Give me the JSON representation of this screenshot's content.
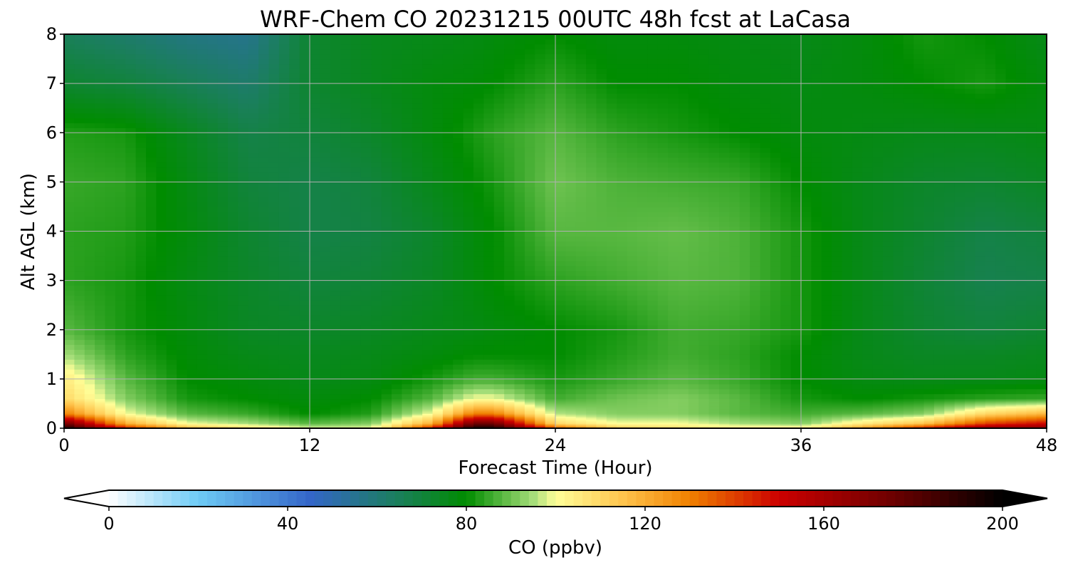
{
  "chart_data": {
    "type": "heatmap",
    "title": "WRF-Chem CO  20231215 00UTC 48h fcst at LaCasa",
    "xlabel": "Forecast Time (Hour)",
    "ylabel": "Alt AGL (km)",
    "xlim": [
      0,
      48
    ],
    "ylim": [
      0,
      8
    ],
    "x_ticks": [
      0,
      12,
      24,
      36,
      48
    ],
    "y_ticks": [
      0,
      1,
      2,
      3,
      4,
      5,
      6,
      7,
      8
    ],
    "grid": true,
    "x": [
      0,
      3,
      6,
      9,
      12,
      15,
      18,
      20,
      21,
      24,
      27,
      30,
      33,
      36,
      39,
      42,
      45,
      48
    ],
    "y": [
      0,
      0.1,
      0.3,
      0.6,
      1,
      1.5,
      2,
      3,
      4,
      5,
      6,
      7,
      8
    ],
    "z": [
      [
        198,
        150,
        120,
        110,
        100,
        100,
        150,
        198,
        198,
        140,
        115,
        110,
        105,
        105,
        125,
        150,
        170,
        170
      ],
      [
        175,
        120,
        100,
        95,
        88,
        92,
        120,
        175,
        175,
        110,
        100,
        100,
        95,
        92,
        105,
        115,
        140,
        150
      ],
      [
        130,
        100,
        88,
        85,
        80,
        83,
        100,
        130,
        130,
        96,
        92,
        92,
        88,
        86,
        88,
        92,
        110,
        118
      ],
      [
        110,
        92,
        82,
        80,
        78,
        80,
        88,
        100,
        100,
        86,
        90,
        92,
        88,
        82,
        80,
        82,
        84,
        85
      ],
      [
        105,
        88,
        80,
        78,
        76,
        77,
        82,
        86,
        86,
        82,
        85,
        88,
        85,
        80,
        77,
        76,
        76,
        77
      ],
      [
        95,
        84,
        79,
        76,
        75,
        76,
        78,
        80,
        80,
        80,
        83,
        86,
        84,
        80,
        76,
        74,
        74,
        75
      ],
      [
        88,
        82,
        78,
        74,
        73,
        74,
        76,
        77,
        78,
        80,
        82,
        86,
        85,
        82,
        76,
        72,
        70,
        72
      ],
      [
        84,
        82,
        77,
        73,
        70,
        71,
        74,
        78,
        80,
        84,
        86,
        88,
        87,
        82,
        76,
        71,
        67,
        68
      ],
      [
        84,
        83,
        78,
        72,
        68,
        69,
        73,
        78,
        80,
        88,
        88,
        89,
        87,
        82,
        76,
        72,
        68,
        70
      ],
      [
        85,
        84,
        77,
        70,
        68,
        70,
        76,
        80,
        82,
        90,
        87,
        86,
        85,
        80,
        76,
        73,
        72,
        74
      ],
      [
        83,
        82,
        75,
        68,
        70,
        73,
        78,
        82,
        84,
        88,
        84,
        82,
        80,
        78,
        77,
        76,
        76,
        77
      ],
      [
        72,
        70,
        66,
        62,
        72,
        75,
        78,
        79,
        80,
        84,
        80,
        80,
        78,
        77,
        78,
        80,
        82,
        78
      ],
      [
        65,
        62,
        58,
        56,
        72,
        75,
        76,
        77,
        78,
        80,
        78,
        78,
        77,
        76,
        78,
        82,
        80,
        76
      ]
    ],
    "colorbar": {
      "label": "CO  (ppbv)",
      "ticks": [
        0,
        40,
        80,
        120,
        160,
        200
      ],
      "range": [
        0,
        200
      ],
      "extend": "both",
      "stops": [
        {
          "v": 0,
          "c": "#ffffff"
        },
        {
          "v": 20,
          "c": "#6ecbf5"
        },
        {
          "v": 45,
          "c": "#3466c8"
        },
        {
          "v": 65,
          "c": "#1a7f5a"
        },
        {
          "v": 80,
          "c": "#008c00"
        },
        {
          "v": 95,
          "c": "#a6de7a"
        },
        {
          "v": 100,
          "c": "#ffff99"
        },
        {
          "v": 115,
          "c": "#ffc44d"
        },
        {
          "v": 130,
          "c": "#f08000"
        },
        {
          "v": 150,
          "c": "#cc0000"
        },
        {
          "v": 175,
          "c": "#6e0000"
        },
        {
          "v": 200,
          "c": "#000000"
        }
      ]
    }
  }
}
